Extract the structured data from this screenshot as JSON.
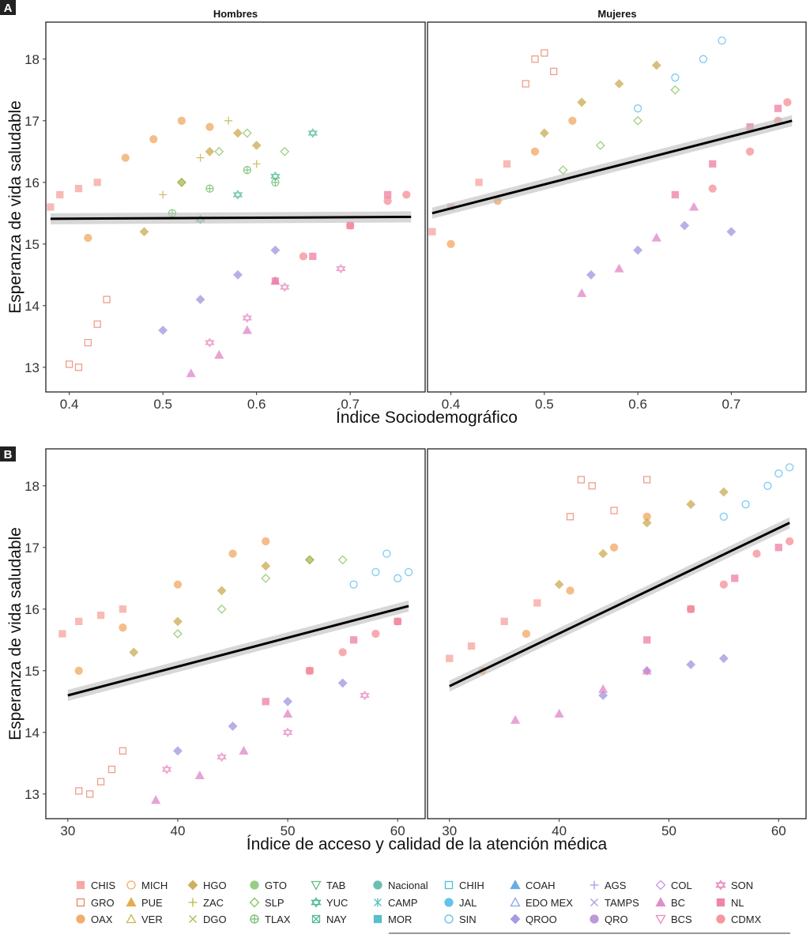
{
  "chart_data": [
    {
      "type": "scatter",
      "panel_label": "A",
      "facets": [
        "Hombres",
        "Mujeres"
      ],
      "xlabel": "Índice Sociodemográfico",
      "ylabel": "Esperanza de vida saludable",
      "xlim": [
        0.375,
        0.78
      ],
      "ylim": [
        12.6,
        18.6
      ],
      "xticks": [
        "0.4",
        "0.5",
        "0.6",
        "0.7"
      ],
      "xtick_values": [
        0.4,
        0.5,
        0.6,
        0.7
      ],
      "yticks": [
        "13",
        "14",
        "15",
        "16",
        "17",
        "18"
      ],
      "ytick_values": [
        13,
        14,
        15,
        16,
        17,
        18
      ],
      "trend_lines": {
        "Hombres": {
          "x": [
            0.38,
            0.765
          ],
          "y": [
            15.41,
            15.44
          ]
        },
        "Mujeres": {
          "x": [
            0.38,
            0.765
          ],
          "y": [
            15.5,
            17.0
          ]
        }
      },
      "state_points": {
        "Hombres": [
          {
            "state": "CHIS",
            "x": [
              0.38,
              0.39,
              0.41,
              0.43
            ],
            "y": [
              15.6,
              15.8,
              15.9,
              16.0
            ]
          },
          {
            "state": "GRO",
            "x": [
              0.4,
              0.41,
              0.42,
              0.43,
              0.44
            ],
            "y": [
              13.05,
              13.0,
              13.4,
              13.7,
              14.1
            ]
          },
          {
            "state": "OAX",
            "x": [
              0.42,
              0.46,
              0.49,
              0.52,
              0.55
            ],
            "y": [
              15.1,
              16.4,
              16.7,
              17.0,
              16.9
            ]
          },
          {
            "state": "HGO",
            "x": [
              0.48,
              0.52,
              0.55,
              0.58,
              0.6
            ],
            "y": [
              15.2,
              16.0,
              16.5,
              16.8,
              16.6
            ]
          },
          {
            "state": "ZAC",
            "x": [
              0.5,
              0.54,
              0.57,
              0.6
            ],
            "y": [
              15.8,
              16.4,
              17.0,
              16.3
            ]
          },
          {
            "state": "SLP",
            "x": [
              0.52,
              0.56,
              0.59,
              0.63
            ],
            "y": [
              16.0,
              16.5,
              16.8,
              16.5
            ]
          },
          {
            "state": "TLAX",
            "x": [
              0.51,
              0.55,
              0.59,
              0.62
            ],
            "y": [
              15.5,
              15.9,
              16.2,
              16.0
            ]
          },
          {
            "state": "YUC",
            "x": [
              0.54,
              0.58,
              0.62,
              0.66
            ],
            "y": [
              15.4,
              15.8,
              16.1,
              16.8
            ]
          },
          {
            "state": "QROO",
            "x": [
              0.5,
              0.54,
              0.58,
              0.62
            ],
            "y": [
              13.6,
              14.1,
              14.5,
              14.9
            ]
          },
          {
            "state": "BC",
            "x": [
              0.53,
              0.56,
              0.59,
              0.62
            ],
            "y": [
              12.9,
              13.2,
              13.6,
              14.4
            ]
          },
          {
            "state": "SON",
            "x": [
              0.55,
              0.59,
              0.63,
              0.69
            ],
            "y": [
              13.4,
              13.8,
              14.3,
              14.6
            ]
          },
          {
            "state": "NL",
            "x": [
              0.62,
              0.66,
              0.7,
              0.74
            ],
            "y": [
              14.4,
              14.8,
              15.3,
              15.8
            ]
          },
          {
            "state": "CDMX",
            "x": [
              0.65,
              0.7,
              0.74,
              0.76
            ],
            "y": [
              14.8,
              15.3,
              15.7,
              15.8
            ]
          }
        ],
        "Mujeres": [
          {
            "state": "CHIS",
            "x": [
              0.38,
              0.4,
              0.43,
              0.46
            ],
            "y": [
              15.2,
              15.6,
              16.0,
              16.3
            ]
          },
          {
            "state": "GRO",
            "x": [
              0.48,
              0.49,
              0.5,
              0.51
            ],
            "y": [
              17.6,
              18.0,
              18.1,
              17.8
            ]
          },
          {
            "state": "OAX",
            "x": [
              0.4,
              0.45,
              0.49,
              0.53
            ],
            "y": [
              15.0,
              15.7,
              16.5,
              17.0
            ]
          },
          {
            "state": "HGO",
            "x": [
              0.5,
              0.54,
              0.58,
              0.62
            ],
            "y": [
              16.8,
              17.3,
              17.6,
              17.9
            ]
          },
          {
            "state": "SLP",
            "x": [
              0.52,
              0.56,
              0.6,
              0.64
            ],
            "y": [
              16.2,
              16.6,
              17.0,
              17.5
            ]
          },
          {
            "state": "SIN",
            "x": [
              0.6,
              0.64,
              0.67,
              0.69
            ],
            "y": [
              17.2,
              17.7,
              18.0,
              18.3
            ]
          },
          {
            "state": "QROO",
            "x": [
              0.55,
              0.6,
              0.65,
              0.7
            ],
            "y": [
              14.5,
              14.9,
              15.3,
              15.2
            ]
          },
          {
            "state": "BC",
            "x": [
              0.54,
              0.58,
              0.62,
              0.66
            ],
            "y": [
              14.2,
              14.6,
              15.1,
              15.6
            ]
          },
          {
            "state": "NL",
            "x": [
              0.64,
              0.68,
              0.72,
              0.75
            ],
            "y": [
              15.8,
              16.3,
              16.9,
              17.2
            ]
          },
          {
            "state": "CDMX",
            "x": [
              0.68,
              0.72,
              0.75,
              0.76
            ],
            "y": [
              15.9,
              16.5,
              17.0,
              17.3
            ]
          }
        ]
      }
    },
    {
      "type": "scatter",
      "panel_label": "B",
      "facets": [
        "Hombres",
        "Mujeres"
      ],
      "xlabel": "Índice de acceso y calidad de la atención médica",
      "ylabel": "Esperanza de vida saludable",
      "xlim": [
        28,
        62.5
      ],
      "ylim": [
        12.6,
        18.6
      ],
      "xticks": [
        "30",
        "40",
        "50",
        "60"
      ],
      "xtick_values": [
        30,
        40,
        50,
        60
      ],
      "yticks": [
        "13",
        "14",
        "15",
        "16",
        "17",
        "18"
      ],
      "ytick_values": [
        13,
        14,
        15,
        16,
        17,
        18
      ],
      "trend_lines": {
        "Hombres": {
          "x": [
            30,
            61
          ],
          "y": [
            14.6,
            16.05
          ]
        },
        "Mujeres": {
          "x": [
            30,
            61
          ],
          "y": [
            14.75,
            17.4
          ]
        }
      },
      "state_points": {
        "Hombres": [
          {
            "state": "CHIS",
            "x": [
              29.5,
              31,
              33,
              35
            ],
            "y": [
              15.6,
              15.8,
              15.9,
              16.0
            ]
          },
          {
            "state": "GRO",
            "x": [
              31,
              32,
              33,
              34,
              35
            ],
            "y": [
              13.05,
              13.0,
              13.2,
              13.4,
              13.7
            ]
          },
          {
            "state": "OAX",
            "x": [
              31,
              35,
              40,
              45,
              48
            ],
            "y": [
              15.0,
              15.7,
              16.4,
              16.9,
              17.1
            ]
          },
          {
            "state": "HGO",
            "x": [
              36,
              40,
              44,
              48,
              52
            ],
            "y": [
              15.3,
              15.8,
              16.3,
              16.7,
              16.8
            ]
          },
          {
            "state": "SLP",
            "x": [
              40,
              44,
              48,
              52,
              55
            ],
            "y": [
              15.6,
              16.0,
              16.5,
              16.8,
              16.8
            ]
          },
          {
            "state": "SIN",
            "x": [
              56,
              58,
              59,
              60,
              61
            ],
            "y": [
              16.4,
              16.6,
              16.9,
              16.5,
              16.6
            ]
          },
          {
            "state": "QROO",
            "x": [
              40,
              45,
              50,
              55
            ],
            "y": [
              13.7,
              14.1,
              14.5,
              14.8
            ]
          },
          {
            "state": "BC",
            "x": [
              38,
              42,
              46,
              50
            ],
            "y": [
              12.9,
              13.3,
              13.7,
              14.3
            ]
          },
          {
            "state": "SON",
            "x": [
              39,
              44,
              50,
              57
            ],
            "y": [
              13.4,
              13.6,
              14.0,
              14.6
            ]
          },
          {
            "state": "NL",
            "x": [
              48,
              52,
              56,
              60
            ],
            "y": [
              14.5,
              15.0,
              15.5,
              15.8
            ]
          },
          {
            "state": "CDMX",
            "x": [
              52,
              55,
              58,
              60
            ],
            "y": [
              15.0,
              15.3,
              15.6,
              15.8
            ]
          }
        ],
        "Mujeres": [
          {
            "state": "CHIS",
            "x": [
              30,
              32,
              35,
              38
            ],
            "y": [
              15.2,
              15.4,
              15.8,
              16.1
            ]
          },
          {
            "state": "GRO",
            "x": [
              41,
              42,
              43,
              45,
              48
            ],
            "y": [
              17.5,
              18.1,
              18.0,
              17.6,
              18.1
            ]
          },
          {
            "state": "OAX",
            "x": [
              33,
              37,
              41,
              45,
              48
            ],
            "y": [
              15.0,
              15.6,
              16.3,
              17.0,
              17.5
            ]
          },
          {
            "state": "HGO",
            "x": [
              40,
              44,
              48,
              52,
              55
            ],
            "y": [
              16.4,
              16.9,
              17.4,
              17.7,
              17.9
            ]
          },
          {
            "state": "SIN",
            "x": [
              55,
              57,
              59,
              60,
              61
            ],
            "y": [
              17.5,
              17.7,
              18.0,
              18.2,
              18.3
            ]
          },
          {
            "state": "QROO",
            "x": [
              44,
              48,
              52,
              55
            ],
            "y": [
              14.6,
              15.0,
              15.1,
              15.2
            ]
          },
          {
            "state": "BC",
            "x": [
              36,
              40,
              44,
              48
            ],
            "y": [
              14.2,
              14.3,
              14.7,
              15.0
            ]
          },
          {
            "state": "NL",
            "x": [
              48,
              52,
              56,
              60
            ],
            "y": [
              15.5,
              16.0,
              16.5,
              17.0
            ]
          },
          {
            "state": "CDMX",
            "x": [
              52,
              55,
              58,
              61
            ],
            "y": [
              16.0,
              16.4,
              16.9,
              17.1
            ]
          }
        ]
      }
    }
  ],
  "legend": [
    {
      "label": "CHIS",
      "shape": "square",
      "fill": true,
      "color": "#F4A09B"
    },
    {
      "label": "GRO",
      "shape": "square",
      "fill": false,
      "color": "#E8795F"
    },
    {
      "label": "OAX",
      "shape": "circle",
      "fill": true,
      "color": "#F2A55C"
    },
    {
      "label": "MICH",
      "shape": "circle",
      "fill": false,
      "color": "#F0A35A"
    },
    {
      "label": "PUE",
      "shape": "triangle",
      "fill": true,
      "color": "#E3A53E"
    },
    {
      "label": "VER",
      "shape": "triangle",
      "fill": false,
      "color": "#C2B43C"
    },
    {
      "label": "HGO",
      "shape": "diamond",
      "fill": true,
      "color": "#C7A84A"
    },
    {
      "label": "ZAC",
      "shape": "plus",
      "fill": false,
      "color": "#B5AC2E"
    },
    {
      "label": "DGO",
      "shape": "cross",
      "fill": false,
      "color": "#9DB83F"
    },
    {
      "label": "GTO",
      "shape": "circle",
      "fill": true,
      "color": "#8CC97A"
    },
    {
      "label": "SLP",
      "shape": "diamond",
      "fill": false,
      "color": "#79BC4F"
    },
    {
      "label": "TLAX",
      "shape": "circleplus",
      "fill": false,
      "color": "#63B65E"
    },
    {
      "label": "TAB",
      "shape": "triangledown",
      "fill": false,
      "color": "#5DB37E"
    },
    {
      "label": "YUC",
      "shape": "star",
      "fill": false,
      "color": "#3FB38A"
    },
    {
      "label": "NAY",
      "shape": "squarex",
      "fill": false,
      "color": "#45B591"
    },
    {
      "label": "Nacional",
      "shape": "circle",
      "fill": true,
      "color": "#5BB9A8"
    },
    {
      "label": "CAMP",
      "shape": "asterisk",
      "fill": false,
      "color": "#39BDBB"
    },
    {
      "label": "MOR",
      "shape": "square",
      "fill": true,
      "color": "#45B9C8"
    },
    {
      "label": "CHIH",
      "shape": "square",
      "fill": false,
      "color": "#38B8D8"
    },
    {
      "label": "JAL",
      "shape": "circle",
      "fill": true,
      "color": "#54BDE7"
    },
    {
      "label": "SIN",
      "shape": "circle",
      "fill": false,
      "color": "#49B8E8"
    },
    {
      "label": "COAH",
      "shape": "triangle",
      "fill": true,
      "color": "#5BA4E2"
    },
    {
      "label": "EDO MEX",
      "shape": "triangle",
      "fill": false,
      "color": "#7E9BE8"
    },
    {
      "label": "QROO",
      "shape": "diamond",
      "fill": true,
      "color": "#9B92DE"
    },
    {
      "label": "AGS",
      "shape": "plus",
      "fill": false,
      "color": "#A090E4"
    },
    {
      "label": "TAMPS",
      "shape": "cross",
      "fill": false,
      "color": "#A38EE3"
    },
    {
      "label": "QRO",
      "shape": "circle",
      "fill": true,
      "color": "#B58DD8"
    },
    {
      "label": "COL",
      "shape": "diamond",
      "fill": false,
      "color": "#C58CD8"
    },
    {
      "label": "BC",
      "shape": "triangle",
      "fill": true,
      "color": "#DE81C5"
    },
    {
      "label": "BCS",
      "shape": "triangledown",
      "fill": false,
      "color": "#EC7FB4"
    },
    {
      "label": "SON",
      "shape": "star",
      "fill": false,
      "color": "#E87CB8"
    },
    {
      "label": "NL",
      "shape": "square",
      "fill": true,
      "color": "#EE7AA0"
    },
    {
      "label": "CDMX",
      "shape": "circle",
      "fill": true,
      "color": "#F48C92"
    }
  ],
  "colors": {
    "trend": "#000000",
    "ribbon": "#BDBDBD"
  }
}
